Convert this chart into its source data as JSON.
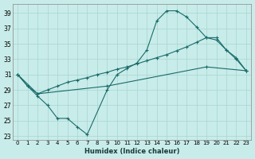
{
  "background_color": "#c8ece9",
  "grid_color": "#a8d4d0",
  "line_color": "#1a6b6b",
  "xlabel": "Humidex (Indice chaleur)",
  "xlim": [
    -0.5,
    23.5
  ],
  "ylim": [
    22.5,
    40.2
  ],
  "xticks": [
    0,
    1,
    2,
    3,
    4,
    5,
    6,
    7,
    8,
    9,
    10,
    11,
    12,
    13,
    14,
    15,
    16,
    17,
    18,
    19,
    20,
    21,
    22,
    23
  ],
  "yticks": [
    23,
    25,
    27,
    29,
    31,
    33,
    35,
    37,
    39
  ],
  "curve_x": [
    0,
    1,
    2,
    3,
    4,
    5,
    6,
    7,
    9,
    10,
    11,
    12,
    13,
    14,
    15,
    16,
    17,
    18,
    19,
    20,
    21,
    22,
    23
  ],
  "curve_y": [
    31,
    29.5,
    28.2,
    27.0,
    25.3,
    25.3,
    24.2,
    23.2,
    29.0,
    31.0,
    31.8,
    32.5,
    34.2,
    38.0,
    39.3,
    39.3,
    38.5,
    37.2,
    35.8,
    35.8,
    34.2,
    33.0,
    31.5
  ],
  "upper_x": [
    0,
    1,
    2,
    3,
    4,
    5,
    6,
    7,
    8,
    9,
    10,
    11,
    12,
    13,
    14,
    15,
    16,
    17,
    18,
    19,
    20,
    21,
    22,
    23
  ],
  "upper_y": [
    31,
    29.5,
    28.5,
    29.0,
    29.5,
    30.0,
    30.3,
    30.6,
    31.0,
    31.3,
    31.7,
    32.0,
    32.4,
    32.8,
    33.2,
    33.6,
    34.1,
    34.6,
    35.2,
    35.8,
    35.5,
    34.2,
    33.2,
    31.5
  ],
  "lower_x": [
    0,
    2,
    9,
    19,
    23
  ],
  "lower_y": [
    31,
    28.5,
    29.5,
    32.0,
    31.5
  ]
}
